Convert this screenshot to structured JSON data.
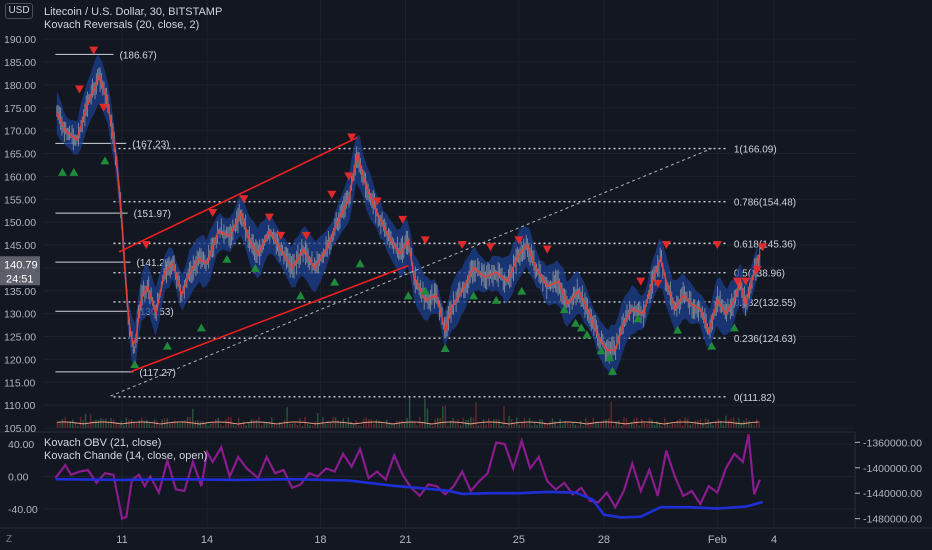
{
  "header": {
    "currency_button": "USD",
    "title": "Litecoin / U.S. Dollar, 30, BITSTAMP",
    "indicator": "Kovach Reversals (20, close, 2)"
  },
  "lower_pane": {
    "obv_label": "Kovach OBV (21, close)",
    "chande_label": "Kovach Chande (14, close, open)"
  },
  "footer": {
    "tz_label": "Z"
  },
  "colors": {
    "background": "#131722",
    "grid": "#1e222d",
    "candles": "#8c9199",
    "band": "#1c3f8f",
    "signal_line": "#e0413a",
    "down_marker": "#e0292b",
    "up_marker": "#1f8a39",
    "channel": "#f02020",
    "fib_line": "#d1d4dc",
    "obv_line": "#1f2fd8",
    "chande_line": "#8a1c8f"
  },
  "chart_data": [
    {
      "type": "line",
      "title": "Litecoin / U.S. Dollar, 30, BITSTAMP",
      "ylim": [
        105,
        192
      ],
      "y_ticks": [
        105,
        110,
        115,
        120,
        125,
        130,
        135,
        140,
        145,
        150,
        155,
        160,
        165,
        170,
        175,
        180,
        185,
        190
      ],
      "x_ticks": [
        {
          "label": "11",
          "d": 0
        },
        {
          "label": "14",
          "d": 3
        },
        {
          "label": "18",
          "d": 7
        },
        {
          "label": "21",
          "d": 10
        },
        {
          "label": "25",
          "d": 14
        },
        {
          "label": "28",
          "d": 17
        },
        {
          "label": "Feb",
          "d": 21
        },
        {
          "label": "4",
          "d": 23
        }
      ],
      "xlim_days": [
        -2.35,
        25.5
      ],
      "price_series": [
        [
          -2.3,
          174
        ],
        [
          -2.0,
          170
        ],
        [
          -1.6,
          168
        ],
        [
          -1.2,
          176
        ],
        [
          -0.8,
          182
        ],
        [
          -0.5,
          176
        ],
        [
          -0.2,
          164
        ],
        [
          0.0,
          150
        ],
        [
          0.1,
          140
        ],
        [
          0.25,
          127
        ],
        [
          0.45,
          122
        ],
        [
          0.65,
          133
        ],
        [
          0.9,
          136
        ],
        [
          1.2,
          130
        ],
        [
          1.5,
          139
        ],
        [
          1.8,
          141
        ],
        [
          2.1,
          134
        ],
        [
          2.4,
          139
        ],
        [
          2.7,
          142
        ],
        [
          3.0,
          141
        ],
        [
          3.4,
          148
        ],
        [
          3.8,
          147
        ],
        [
          4.2,
          152
        ],
        [
          4.5,
          146
        ],
        [
          4.8,
          143
        ],
        [
          5.2,
          148
        ],
        [
          5.6,
          144
        ],
        [
          6.0,
          140
        ],
        [
          6.4,
          144
        ],
        [
          6.8,
          140
        ],
        [
          7.2,
          144
        ],
        [
          7.6,
          150
        ],
        [
          8.0,
          155
        ],
        [
          8.3,
          165
        ],
        [
          8.6,
          158
        ],
        [
          9.0,
          152
        ],
        [
          9.4,
          147
        ],
        [
          9.8,
          143
        ],
        [
          10.1,
          146
        ],
        [
          10.3,
          138
        ],
        [
          10.7,
          133
        ],
        [
          11.1,
          134
        ],
        [
          11.4,
          126
        ],
        [
          11.6,
          131
        ],
        [
          12.0,
          135
        ],
        [
          12.4,
          140
        ],
        [
          12.8,
          138
        ],
        [
          13.2,
          139
        ],
        [
          13.6,
          137
        ],
        [
          14.0,
          143
        ],
        [
          14.3,
          145
        ],
        [
          14.6,
          140
        ],
        [
          15.0,
          136
        ],
        [
          15.4,
          137
        ],
        [
          15.7,
          132
        ],
        [
          16.1,
          135
        ],
        [
          16.5,
          130
        ],
        [
          16.8,
          125
        ],
        [
          17.1,
          122
        ],
        [
          17.4,
          122
        ],
        [
          17.7,
          128
        ],
        [
          18.0,
          131
        ],
        [
          18.4,
          130
        ],
        [
          18.7,
          137
        ],
        [
          19.0,
          142
        ],
        [
          19.2,
          137
        ],
        [
          19.5,
          131
        ],
        [
          19.8,
          134
        ],
        [
          20.1,
          132
        ],
        [
          20.4,
          131
        ],
        [
          20.7,
          126
        ],
        [
          21.0,
          133
        ],
        [
          21.3,
          130
        ],
        [
          21.6,
          133
        ],
        [
          21.8,
          137
        ],
        [
          22.0,
          132
        ],
        [
          22.3,
          139
        ],
        [
          22.5,
          143
        ]
      ],
      "channel": {
        "upper": [
          [
            -0.1,
            143.5
          ],
          [
            8.3,
            168.5
          ]
        ],
        "lower": [
          [
            0.3,
            117.3
          ],
          [
            10.1,
            140.5
          ]
        ]
      },
      "trend_dotted": [
        [
          -0.4,
          112
        ],
        [
          20.8,
          166.1
        ]
      ],
      "price_levels": [
        {
          "label": "(186.67)",
          "value": 186.67,
          "from": -2.35,
          "to": -0.3
        },
        {
          "label": "(167.23)",
          "value": 167.23,
          "from": -2.35,
          "to": 0.15
        },
        {
          "label": "(151.97)",
          "value": 151.97,
          "from": -2.35,
          "to": 0.2
        },
        {
          "label": "(141.25)",
          "value": 141.25,
          "from": -2.35,
          "to": 0.3
        },
        {
          "label": "(130.53)",
          "value": 130.53,
          "from": -2.35,
          "to": 0.3
        },
        {
          "label": "(117.27)",
          "value": 117.27,
          "from": -2.35,
          "to": 0.4
        }
      ],
      "fib_levels": [
        {
          "label": "1(166.09)",
          "value": 166.09
        },
        {
          "label": "0.786(154.48)",
          "value": 154.48
        },
        {
          "label": "0.618(145.36)",
          "value": 145.36
        },
        {
          "label": "0.5(138.96)",
          "value": 138.96
        },
        {
          "label": "0.382(132.55)",
          "value": 132.55
        },
        {
          "label": "0.236(124.63)",
          "value": 124.63
        },
        {
          "label": "0(111.82)",
          "value": 111.82
        }
      ],
      "fib_range": [
        -0.3,
        21.3
      ],
      "down_markers": [
        [
          -1.0,
          187.5
        ],
        [
          -1.5,
          179
        ],
        [
          -0.65,
          175
        ],
        [
          0.85,
          145
        ],
        [
          3.2,
          152
        ],
        [
          4.3,
          155
        ],
        [
          5.2,
          151
        ],
        [
          5.6,
          147
        ],
        [
          6.5,
          147
        ],
        [
          7.4,
          156
        ],
        [
          8.1,
          168.5
        ],
        [
          8.0,
          160
        ],
        [
          9.0,
          154.5
        ],
        [
          9.9,
          150.5
        ],
        [
          10.7,
          146
        ],
        [
          12.0,
          145
        ],
        [
          13.0,
          144.5
        ],
        [
          14.0,
          146
        ],
        [
          15.0,
          144
        ],
        [
          18.3,
          137
        ],
        [
          18.9,
          136.5
        ],
        [
          19.2,
          145
        ],
        [
          21.0,
          145
        ],
        [
          21.7,
          137
        ],
        [
          22.0,
          137
        ],
        [
          22.4,
          139.5
        ],
        [
          22.6,
          144.5
        ]
      ],
      "up_markers": [
        [
          -2.1,
          161
        ],
        [
          -1.7,
          161
        ],
        [
          -0.6,
          163.5
        ],
        [
          0.45,
          119
        ],
        [
          1.6,
          123
        ],
        [
          2.8,
          127
        ],
        [
          3.7,
          142
        ],
        [
          4.7,
          140
        ],
        [
          6.3,
          134
        ],
        [
          7.5,
          137
        ],
        [
          8.4,
          141
        ],
        [
          10.1,
          134
        ],
        [
          10.7,
          135
        ],
        [
          11.4,
          122.5
        ],
        [
          12.4,
          134
        ],
        [
          13.2,
          133
        ],
        [
          14.1,
          135
        ],
        [
          15.6,
          131
        ],
        [
          16.0,
          128
        ],
        [
          16.2,
          127
        ],
        [
          16.4,
          125.5
        ],
        [
          16.9,
          122
        ],
        [
          17.2,
          120.5
        ],
        [
          17.3,
          117.5
        ],
        [
          18.2,
          129
        ],
        [
          19.6,
          126.5
        ],
        [
          20.8,
          123
        ],
        [
          21.6,
          127
        ]
      ],
      "current_price": {
        "label": "140.79",
        "countdown": "24:51",
        "value": 140.79
      }
    },
    {
      "type": "line",
      "title": "Kovach OBV (21, close)",
      "left_ylim": [
        -60,
        50
      ],
      "left_ticks": [
        "40.00",
        "0.00",
        "-40.00"
      ],
      "left_tick_values": [
        40,
        0,
        -40
      ],
      "right_ylim": [
        -1490000,
        -1350000
      ],
      "right_ticks": [
        "-1360000.00",
        "-1400000.00",
        "-1440000.00",
        "-1480000.00"
      ],
      "right_tick_values": [
        -1360000,
        -1400000,
        -1440000,
        -1480000
      ],
      "series": [
        {
          "name": "Kovach OBV (21, close)",
          "axis": "right",
          "points": [
            [
              -2.35,
              -1418000
            ],
            [
              0.0,
              -1419000
            ],
            [
              2.0,
              -1418000
            ],
            [
              4.0,
              -1419000
            ],
            [
              6.0,
              -1418000
            ],
            [
              8.0,
              -1420000
            ],
            [
              9.5,
              -1428000
            ],
            [
              10.5,
              -1432000
            ],
            [
              11.5,
              -1436000
            ],
            [
              12.0,
              -1441000
            ],
            [
              13.0,
              -1440000
            ],
            [
              14.0,
              -1440000
            ],
            [
              15.0,
              -1438000
            ],
            [
              16.0,
              -1439000
            ],
            [
              16.6,
              -1450000
            ],
            [
              17.0,
              -1474000
            ],
            [
              17.6,
              -1478000
            ],
            [
              18.3,
              -1477000
            ],
            [
              19.0,
              -1462000
            ],
            [
              20.0,
              -1462000
            ],
            [
              21.0,
              -1464000
            ],
            [
              22.0,
              -1461000
            ],
            [
              22.6,
              -1454000
            ]
          ]
        },
        {
          "name": "Kovach Chande (14, close, open)",
          "axis": "left",
          "points": [
            [
              -2.35,
              -2
            ],
            [
              -2.0,
              14
            ],
            [
              -1.8,
              2
            ],
            [
              -1.5,
              6
            ],
            [
              -1.2,
              8
            ],
            [
              -0.9,
              -8
            ],
            [
              -0.6,
              4
            ],
            [
              -0.3,
              2
            ],
            [
              0.0,
              -52
            ],
            [
              0.15,
              -50
            ],
            [
              0.35,
              -4
            ],
            [
              0.6,
              2
            ],
            [
              0.8,
              -12
            ],
            [
              1.0,
              0
            ],
            [
              1.3,
              -20
            ],
            [
              1.6,
              20
            ],
            [
              1.9,
              -16
            ],
            [
              2.2,
              -18
            ],
            [
              2.5,
              18
            ],
            [
              2.8,
              -12
            ],
            [
              3.0,
              30
            ],
            [
              3.2,
              18
            ],
            [
              3.5,
              36
            ],
            [
              3.8,
              0
            ],
            [
              4.1,
              24
            ],
            [
              4.4,
              10
            ],
            [
              4.8,
              -2
            ],
            [
              5.1,
              24
            ],
            [
              5.4,
              4
            ],
            [
              5.7,
              8
            ],
            [
              6.0,
              -14
            ],
            [
              6.3,
              -10
            ],
            [
              6.6,
              4
            ],
            [
              6.9,
              0
            ],
            [
              7.2,
              10
            ],
            [
              7.5,
              6
            ],
            [
              7.8,
              28
            ],
            [
              8.1,
              12
            ],
            [
              8.4,
              34
            ],
            [
              8.7,
              -2
            ],
            [
              9.0,
              6
            ],
            [
              9.3,
              -4
            ],
            [
              9.6,
              26
            ],
            [
              9.9,
              2
            ],
            [
              10.2,
              -14
            ],
            [
              10.5,
              -24
            ],
            [
              10.8,
              -10
            ],
            [
              11.1,
              -12
            ],
            [
              11.4,
              -22
            ],
            [
              11.7,
              -12
            ],
            [
              12.0,
              6
            ],
            [
              12.3,
              -18
            ],
            [
              12.6,
              -6
            ],
            [
              12.9,
              4
            ],
            [
              13.2,
              42
            ],
            [
              13.5,
              40
            ],
            [
              13.8,
              10
            ],
            [
              14.1,
              44
            ],
            [
              14.4,
              10
            ],
            [
              14.7,
              24
            ],
            [
              15.0,
              -6
            ],
            [
              15.3,
              -16
            ],
            [
              15.6,
              -8
            ],
            [
              15.9,
              -22
            ],
            [
              16.2,
              -14
            ],
            [
              16.5,
              -30
            ],
            [
              16.8,
              -32
            ],
            [
              17.1,
              -20
            ],
            [
              17.4,
              -38
            ],
            [
              17.7,
              -18
            ],
            [
              18.0,
              16
            ],
            [
              18.3,
              -18
            ],
            [
              18.6,
              8
            ],
            [
              18.9,
              -24
            ],
            [
              19.2,
              32
            ],
            [
              19.5,
              0
            ],
            [
              19.8,
              -24
            ],
            [
              20.1,
              -18
            ],
            [
              20.4,
              -34
            ],
            [
              20.7,
              -12
            ],
            [
              21.0,
              -20
            ],
            [
              21.3,
              10
            ],
            [
              21.6,
              28
            ],
            [
              21.9,
              18
            ],
            [
              22.1,
              52
            ],
            [
              22.3,
              -22
            ],
            [
              22.5,
              -4
            ]
          ]
        }
      ]
    }
  ]
}
